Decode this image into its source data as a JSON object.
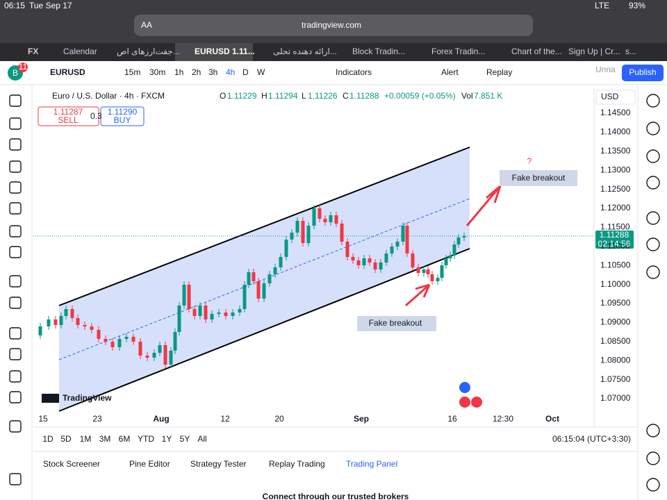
{
  "status_bar": {
    "time": "06:15",
    "date": "Tue Sep 17",
    "signal": "LTE",
    "battery": "93%"
  },
  "browser": {
    "text_size": "AA",
    "url": "tradingview.com",
    "tabs": [
      "FX",
      "Calendar",
      "جفت‌ارزهای اص...",
      "EURUSD 1.11...",
      "ارائه دهنده تحلی...",
      "Block Tradin...",
      "Forex Tradin...",
      "Chart of the...",
      "Sign Up | Cr...",
      "s..."
    ]
  },
  "toolbar": {
    "avatar": "B",
    "badge": "11",
    "symbol": "EURUSD",
    "intervals": [
      "15m",
      "30m",
      "1h",
      "2h",
      "3h",
      "4h",
      "D",
      "W"
    ],
    "indicators": "Indicators",
    "alert": "Alert",
    "replay": "Replay",
    "layout_name": "Unna",
    "publish": "Publish"
  },
  "legend": {
    "title": "Euro / U.S. Dollar · 4h · FXCM",
    "ohlc": [
      "O",
      "1.11229",
      "H",
      "1.11294",
      "L",
      "1.11226",
      "C",
      "1.11288",
      "+0.00059 (+0.05%)",
      "Vol",
      "7.851 K"
    ],
    "sell_price": "1.11287",
    "sell": "SELL",
    "spread": "0.3",
    "buy_price": "1.11290",
    "buy": "BUY"
  },
  "price_axis": {
    "currency": "USD",
    "labels": [
      "1.14500",
      "1.14000",
      "1.13500",
      "1.13000",
      "1.12500",
      "1.12000",
      "1.11500",
      "1.11000",
      "1.10500",
      "1.10000",
      "1.09500",
      "1.09000",
      "1.08500",
      "1.08000",
      "1.07500",
      "1.07000"
    ],
    "current_price": "1.11288",
    "countdown": "02:14:56"
  },
  "annotations": {
    "upper": "Fake breakout",
    "question": "?",
    "lower": "Fake breakout"
  },
  "logo": "TradingView",
  "time_axis": [
    "15",
    "23",
    "Aug",
    "12",
    "20",
    "Sep",
    "16",
    "12:30",
    "Oct"
  ],
  "ranges": [
    "1D",
    "5D",
    "1M",
    "3M",
    "6M",
    "YTD",
    "1Y",
    "5Y",
    "All"
  ],
  "clock": "06:15:04 (UTC+3:30)",
  "bottom_tabs": [
    "Stock Screener",
    "Pine Editor",
    "Strategy Tester",
    "Replay Trading",
    "Trading Panel"
  ],
  "bottom_text": "Connect through our trusted brokers"
}
